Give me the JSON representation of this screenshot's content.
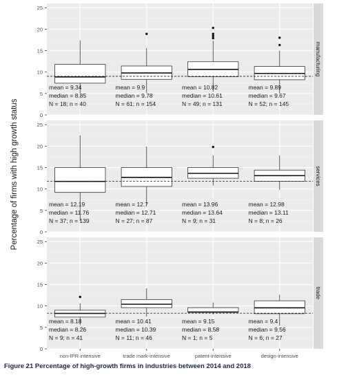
{
  "caption": "Figure 21 Percentage of high-growth firms in industries between 2014 and 2018",
  "chart_data": {
    "type": "box",
    "ylabel": "Percentage of firms with high growth status",
    "categories": [
      "non-IPR intensive",
      "trade mark-intensive",
      "patent-intensive",
      "design-intensive"
    ],
    "ylim": [
      0,
      26
    ],
    "yticks": [
      0,
      5,
      10,
      15,
      20,
      25
    ],
    "grid": true,
    "colors": {
      "panel_bg": "#ebebeb",
      "grid_major": "#ffffff",
      "strip_bg": "#d9d9d9",
      "box_fill": "#ffffff",
      "box_line": "#333333",
      "text": "#1a1a1a",
      "tick_text": "#4d4d4d"
    },
    "panels": [
      {
        "name": "manufacturing",
        "overall_mean": 9.0,
        "boxes": [
          {
            "q1": 7.4,
            "median": 8.85,
            "q3": 11.8,
            "whisker_low": 5.0,
            "whisker_high": 17.4,
            "outliers": [],
            "stats": [
              "mean = 9.34",
              "median = 8.85",
              "N = 18; n = 40"
            ]
          },
          {
            "q1": 8.3,
            "median": 9.78,
            "q3": 11.4,
            "whisker_low": 5.2,
            "whisker_high": 15.6,
            "outliers": [
              18.9
            ],
            "stats": [
              "mean = 9.9",
              "median = 9.78",
              "N = 61; n = 154"
            ]
          },
          {
            "q1": 8.9,
            "median": 10.61,
            "q3": 12.4,
            "whisker_low": 5.4,
            "whisker_high": 17.3,
            "outliers": [
              17.9,
              18.4,
              18.9,
              20.3
            ],
            "stats": [
              "mean = 10.82",
              "median = 10.61",
              "N = 49; n = 131"
            ]
          },
          {
            "q1": 8.2,
            "median": 9.67,
            "q3": 11.3,
            "whisker_low": 5.0,
            "whisker_high": 15.0,
            "outliers": [
              16.3,
              18.0
            ],
            "stats": [
              "mean = 9.89",
              "median = 9.67",
              "N = 52; n = 145"
            ]
          }
        ]
      },
      {
        "name": "services",
        "overall_mean": 11.8,
        "boxes": [
          {
            "q1": 9.2,
            "median": 11.76,
            "q3": 15.0,
            "whisker_low": 2.5,
            "whisker_high": 22.5,
            "outliers": [],
            "stats": [
              "mean = 12.19",
              "median = 11.76",
              "N = 37; n = 139"
            ]
          },
          {
            "q1": 10.6,
            "median": 12.71,
            "q3": 15.0,
            "whisker_low": 6.2,
            "whisker_high": 19.9,
            "outliers": [],
            "stats": [
              "mean = 12.7",
              "median = 12.71",
              "N = 27; n = 87"
            ]
          },
          {
            "q1": 12.5,
            "median": 13.64,
            "q3": 15.0,
            "whisker_low": 10.8,
            "whisker_high": 17.8,
            "outliers": [
              19.8
            ],
            "stats": [
              "mean = 13.96",
              "median = 13.64",
              "N = 9; n = 31"
            ]
          },
          {
            "q1": 11.8,
            "median": 13.11,
            "q3": 14.4,
            "whisker_low": 9.8,
            "whisker_high": 17.8,
            "outliers": [],
            "stats": [
              "mean = 12.98",
              "median = 13.11",
              "N = 8; n = 26"
            ]
          }
        ]
      },
      {
        "name": "trade",
        "overall_mean": 8.3,
        "boxes": [
          {
            "q1": 7.4,
            "median": 8.26,
            "q3": 9.0,
            "whisker_low": 5.5,
            "whisker_high": 10.6,
            "outliers": [
              12.1
            ],
            "stats": [
              "mean = 8.18",
              "median = 8.26",
              "N = 9; n = 41"
            ]
          },
          {
            "q1": 9.6,
            "median": 10.39,
            "q3": 11.5,
            "whisker_low": 7.5,
            "whisker_high": 14.1,
            "outliers": [],
            "stats": [
              "mean = 10.41",
              "median = 10.39",
              "N = 11; n = 46"
            ]
          },
          {
            "q1": 8.5,
            "median": 8.58,
            "q3": 9.6,
            "whisker_low": 8.0,
            "whisker_high": 10.8,
            "outliers": [],
            "stats": [
              "mean = 9.15",
              "median = 8.58",
              "N = 1; n = 5"
            ]
          },
          {
            "q1": 8.2,
            "median": 9.56,
            "q3": 11.2,
            "whisker_low": 5.4,
            "whisker_high": 12.6,
            "outliers": [],
            "stats": [
              "mean = 9.4",
              "median = 9.56",
              "N = 6; n = 27"
            ]
          }
        ]
      }
    ]
  }
}
